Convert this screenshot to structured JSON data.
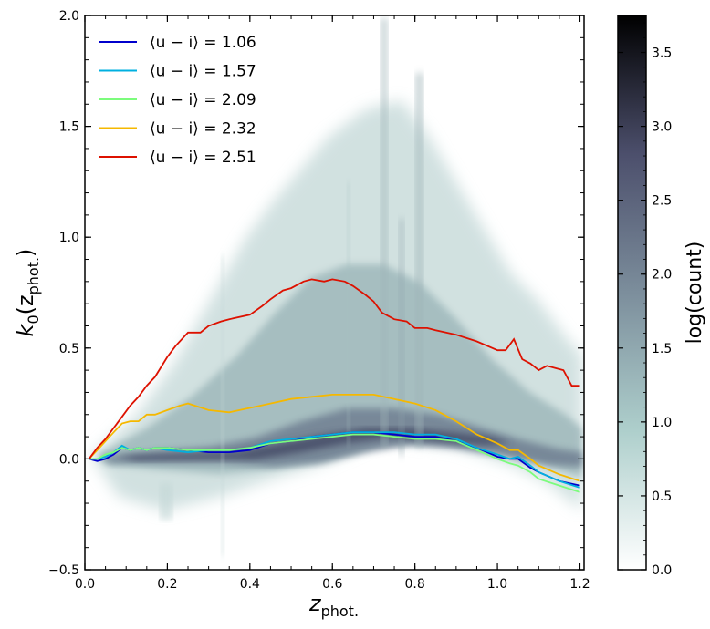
{
  "chart_data": {
    "type": "line",
    "xlabel_main": "z",
    "xlabel_sub": "phot.",
    "ylabel_pre": "k",
    "ylabel_sub0": "0",
    "ylabel_mid": "(z",
    "ylabel_sub": "phot.",
    "ylabel_post": ")",
    "xlim": [
      0.0,
      1.21
    ],
    "ylim": [
      -0.5,
      2.0
    ],
    "x_ticks": [
      0.0,
      0.2,
      0.4,
      0.6,
      0.8,
      1.0,
      1.2
    ],
    "x_tick_labels": [
      "0.0",
      "0.2",
      "0.4",
      "0.6",
      "0.8",
      "1.0",
      "1.2"
    ],
    "y_ticks": [
      -0.5,
      0.0,
      0.5,
      1.0,
      1.5,
      2.0
    ],
    "y_tick_labels": [
      "−0.5",
      "0.0",
      "0.5",
      "1.0",
      "1.5",
      "2.0"
    ],
    "legend_position": "top-left",
    "series": [
      {
        "name": "⟨u − i⟩ = 1.06",
        "color": "#0000cc",
        "x": [
          0.01,
          0.03,
          0.05,
          0.07,
          0.09,
          0.11,
          0.13,
          0.15,
          0.17,
          0.2,
          0.25,
          0.3,
          0.35,
          0.4,
          0.45,
          0.5,
          0.55,
          0.6,
          0.65,
          0.7,
          0.75,
          0.8,
          0.85,
          0.9,
          0.95,
          1.0,
          1.03,
          1.05,
          1.08,
          1.1,
          1.15,
          1.2
        ],
        "y": [
          0.0,
          -0.01,
          0.0,
          0.02,
          0.05,
          0.04,
          0.05,
          0.04,
          0.05,
          0.05,
          0.04,
          0.03,
          0.03,
          0.04,
          0.07,
          0.08,
          0.1,
          0.11,
          0.12,
          0.12,
          0.11,
          0.1,
          0.1,
          0.08,
          0.05,
          0.01,
          0.0,
          0.0,
          -0.04,
          -0.06,
          -0.1,
          -0.12
        ]
      },
      {
        "name": "⟨u − i⟩ = 1.57",
        "color": "#00b0e0",
        "x": [
          0.01,
          0.03,
          0.05,
          0.07,
          0.09,
          0.11,
          0.13,
          0.15,
          0.17,
          0.2,
          0.25,
          0.3,
          0.35,
          0.4,
          0.45,
          0.5,
          0.55,
          0.6,
          0.65,
          0.7,
          0.75,
          0.8,
          0.85,
          0.9,
          0.95,
          1.0,
          1.03,
          1.05,
          1.08,
          1.1,
          1.15,
          1.2
        ],
        "y": [
          0.0,
          0.0,
          0.01,
          0.03,
          0.06,
          0.04,
          0.05,
          0.04,
          0.05,
          0.04,
          0.03,
          0.04,
          0.04,
          0.05,
          0.08,
          0.09,
          0.1,
          0.11,
          0.12,
          0.12,
          0.12,
          0.11,
          0.11,
          0.09,
          0.05,
          0.02,
          0.0,
          0.01,
          -0.03,
          -0.06,
          -0.1,
          -0.13
        ]
      },
      {
        "name": "⟨u − i⟩ = 2.09",
        "color": "#7cfc7c",
        "x": [
          0.01,
          0.03,
          0.05,
          0.07,
          0.09,
          0.11,
          0.13,
          0.15,
          0.17,
          0.2,
          0.25,
          0.3,
          0.35,
          0.4,
          0.45,
          0.5,
          0.55,
          0.6,
          0.65,
          0.7,
          0.75,
          0.8,
          0.85,
          0.9,
          0.95,
          1.0,
          1.03,
          1.05,
          1.08,
          1.1,
          1.15,
          1.2
        ],
        "y": [
          0.0,
          0.0,
          0.02,
          0.03,
          0.05,
          0.04,
          0.05,
          0.04,
          0.05,
          0.05,
          0.04,
          0.04,
          0.04,
          0.05,
          0.07,
          0.08,
          0.09,
          0.1,
          0.11,
          0.11,
          0.1,
          0.09,
          0.09,
          0.08,
          0.04,
          0.0,
          -0.02,
          -0.03,
          -0.06,
          -0.09,
          -0.12,
          -0.15
        ]
      },
      {
        "name": "⟨u − i⟩ = 2.32",
        "color": "#f5b800",
        "x": [
          0.01,
          0.03,
          0.05,
          0.07,
          0.09,
          0.11,
          0.13,
          0.15,
          0.17,
          0.2,
          0.23,
          0.25,
          0.3,
          0.35,
          0.4,
          0.45,
          0.5,
          0.55,
          0.6,
          0.65,
          0.7,
          0.75,
          0.8,
          0.85,
          0.9,
          0.95,
          1.0,
          1.03,
          1.05,
          1.08,
          1.1,
          1.15,
          1.2
        ],
        "y": [
          0.0,
          0.04,
          0.08,
          0.12,
          0.16,
          0.17,
          0.17,
          0.2,
          0.2,
          0.22,
          0.24,
          0.25,
          0.22,
          0.21,
          0.23,
          0.25,
          0.27,
          0.28,
          0.29,
          0.29,
          0.29,
          0.27,
          0.25,
          0.22,
          0.17,
          0.11,
          0.07,
          0.04,
          0.04,
          0.0,
          -0.03,
          -0.07,
          -0.1
        ]
      },
      {
        "name": "⟨u − i⟩ = 2.51",
        "color": "#dd1100",
        "x": [
          0.01,
          0.03,
          0.05,
          0.07,
          0.09,
          0.11,
          0.13,
          0.15,
          0.17,
          0.2,
          0.22,
          0.25,
          0.28,
          0.3,
          0.33,
          0.35,
          0.4,
          0.43,
          0.45,
          0.48,
          0.5,
          0.53,
          0.55,
          0.58,
          0.6,
          0.63,
          0.65,
          0.68,
          0.7,
          0.72,
          0.75,
          0.78,
          0.8,
          0.83,
          0.85,
          0.9,
          0.95,
          1.0,
          1.02,
          1.04,
          1.06,
          1.08,
          1.1,
          1.12,
          1.14,
          1.16,
          1.18,
          1.2
        ],
        "y": [
          0.0,
          0.05,
          0.09,
          0.14,
          0.19,
          0.24,
          0.28,
          0.33,
          0.37,
          0.46,
          0.51,
          0.57,
          0.57,
          0.6,
          0.62,
          0.63,
          0.65,
          0.69,
          0.72,
          0.76,
          0.77,
          0.8,
          0.81,
          0.8,
          0.81,
          0.8,
          0.78,
          0.74,
          0.71,
          0.66,
          0.63,
          0.62,
          0.59,
          0.59,
          0.58,
          0.56,
          0.53,
          0.49,
          0.49,
          0.54,
          0.45,
          0.43,
          0.4,
          0.42,
          0.41,
          0.4,
          0.33,
          0.33
        ]
      }
    ]
  },
  "colorbar": {
    "label": "log(count)",
    "min": 0.0,
    "max": 3.75,
    "ticks": [
      0.0,
      0.5,
      1.0,
      1.5,
      2.0,
      2.5,
      3.0,
      3.5
    ],
    "tick_labels": [
      "0.0",
      "0.5",
      "1.0",
      "1.5",
      "2.0",
      "2.5",
      "3.0",
      "3.5"
    ],
    "colors": [
      "#ffffff",
      "#aecfcc",
      "#7c8e9c",
      "#4c4f6c",
      "#000000"
    ]
  }
}
